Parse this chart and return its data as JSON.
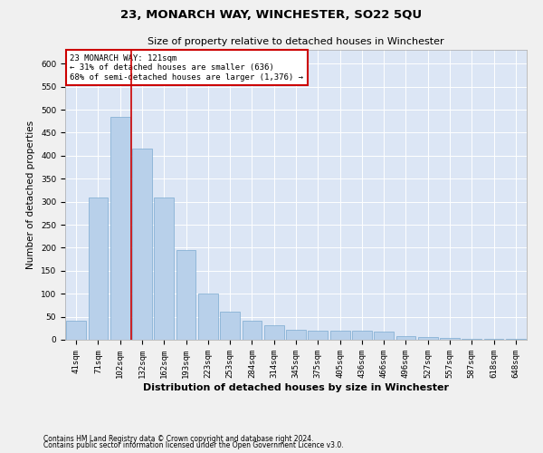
{
  "title": "23, MONARCH WAY, WINCHESTER, SO22 5QU",
  "subtitle": "Size of property relative to detached houses in Winchester",
  "xlabel": "Distribution of detached houses by size in Winchester",
  "ylabel": "Number of detached properties",
  "categories": [
    "41sqm",
    "71sqm",
    "102sqm",
    "132sqm",
    "162sqm",
    "193sqm",
    "223sqm",
    "253sqm",
    "284sqm",
    "314sqm",
    "345sqm",
    "375sqm",
    "405sqm",
    "436sqm",
    "466sqm",
    "496sqm",
    "527sqm",
    "557sqm",
    "587sqm",
    "618sqm",
    "648sqm"
  ],
  "values": [
    42,
    310,
    485,
    415,
    310,
    195,
    100,
    62,
    42,
    32,
    22,
    20,
    20,
    19,
    18,
    8,
    5,
    4,
    2,
    1,
    2
  ],
  "bar_color": "#b8d0ea",
  "bar_edge_color": "#7aaad0",
  "background_color": "#dce6f5",
  "grid_color": "#ffffff",
  "vline_x": 2.5,
  "vline_color": "#cc0000",
  "annotation_line1": "23 MONARCH WAY: 121sqm",
  "annotation_line2": "← 31% of detached houses are smaller (636)",
  "annotation_line3": "68% of semi-detached houses are larger (1,376) →",
  "annotation_box_color": "#cc0000",
  "ylim": [
    0,
    630
  ],
  "yticks": [
    0,
    50,
    100,
    150,
    200,
    250,
    300,
    350,
    400,
    450,
    500,
    550,
    600
  ],
  "footnote1": "Contains HM Land Registry data © Crown copyright and database right 2024.",
  "footnote2": "Contains public sector information licensed under the Open Government Licence v3.0.",
  "title_fontsize": 9.5,
  "subtitle_fontsize": 8,
  "xlabel_fontsize": 8,
  "ylabel_fontsize": 7.5,
  "tick_fontsize": 6.5,
  "annot_fontsize": 6.5,
  "footnote_fontsize": 5.5
}
